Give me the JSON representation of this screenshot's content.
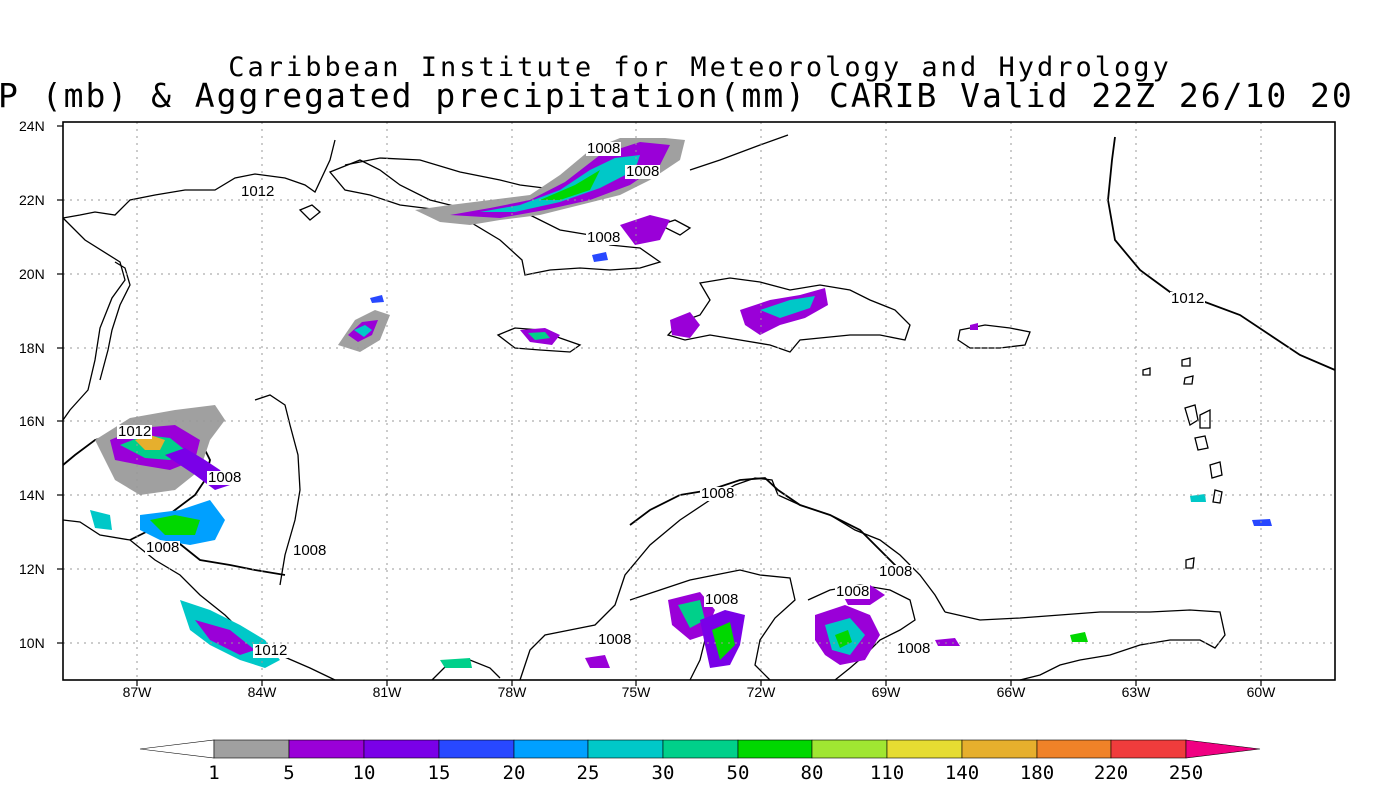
{
  "title": {
    "line1": "Caribbean Institute for Meteorology and Hydrology",
    "line2": "P (mb) & Aggregated precipitation(mm) CARIB Valid 22Z 26/10 20"
  },
  "map": {
    "lat_ticks": [
      "24N",
      "22N",
      "20N",
      "18N",
      "16N",
      "14N",
      "12N",
      "10N"
    ],
    "lon_ticks": [
      "87W",
      "84W",
      "81W",
      "78W",
      "75W",
      "72W",
      "69W",
      "66W",
      "63W",
      "60W"
    ],
    "lon_range": [
      -89,
      -58.5
    ],
    "lat_range": [
      9,
      24.1
    ],
    "grid": "dotted",
    "contour_labels": [
      "1012",
      "1008",
      "1008",
      "1008",
      "1012",
      "1012",
      "1008",
      "1008",
      "1008",
      "1008",
      "1008",
      "1008",
      "1008",
      "1008",
      "1012",
      "1008"
    ]
  },
  "colorbar": {
    "labels": [
      "1",
      "5",
      "10",
      "15",
      "20",
      "25",
      "30",
      "50",
      "80",
      "110",
      "140",
      "180",
      "220",
      "250"
    ],
    "colors": [
      "#a0a0a0",
      "#9a00d8",
      "#7a00e8",
      "#2848ff",
      "#00a0ff",
      "#00c8c8",
      "#00d08a",
      "#00d800",
      "#a0e632",
      "#e6dc32",
      "#e6af2d",
      "#f08228",
      "#f03c3c",
      "#f00082"
    ]
  }
}
